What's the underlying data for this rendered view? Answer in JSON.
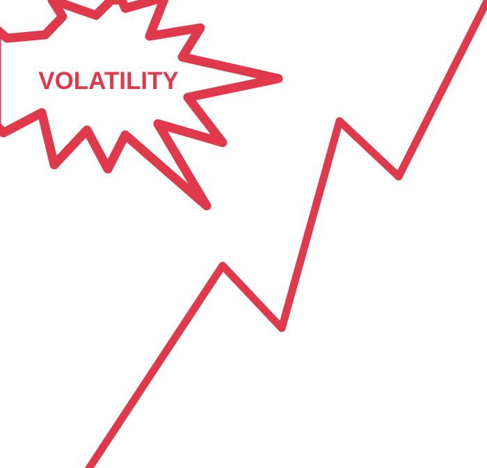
{
  "colors": {
    "accent": "#e0394c",
    "background": "#ffffff"
  },
  "burst": {
    "label": "VOLATILITY",
    "icon": "starburst-icon"
  },
  "trend_line": {
    "icon": "zigzag-trend-line"
  }
}
